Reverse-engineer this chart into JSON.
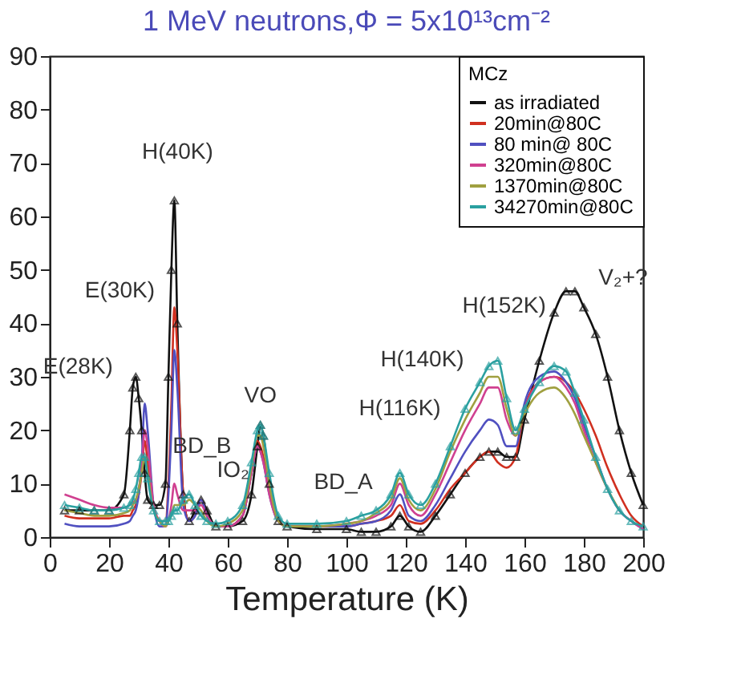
{
  "chart_data": {
    "type": "line",
    "title": "1 MeV neutrons,Φ = 5x10¹³cm⁻²",
    "xlabel": "Temperature (K)",
    "legend_title": "MCz",
    "legend": "top right",
    "grid": false,
    "x": [
      5,
      10,
      15,
      20,
      25,
      27,
      28,
      29,
      30,
      31,
      32,
      33,
      35,
      37,
      39,
      40,
      41,
      42,
      43,
      45,
      47,
      49,
      51,
      53,
      56,
      60,
      65,
      68,
      70,
      71,
      72,
      74,
      77,
      80,
      90,
      100,
      105,
      110,
      115,
      118,
      121,
      125,
      130,
      135,
      140,
      145,
      148,
      151,
      154,
      157,
      160,
      165,
      170,
      174,
      177,
      180,
      184,
      188,
      192,
      196,
      200
    ],
    "xlim": [
      0,
      200
    ],
    "xticks": [
      0,
      20,
      40,
      60,
      80,
      100,
      120,
      140,
      160,
      180,
      200
    ],
    "ylim": [
      0,
      90
    ],
    "yticks": [
      0,
      10,
      20,
      30,
      40,
      50,
      60,
      70,
      80,
      90
    ],
    "series": [
      {
        "name": "as irradiated",
        "color": "#111111",
        "marker": "triangle",
        "values": [
          5,
          5,
          5,
          5,
          8,
          20,
          28,
          30,
          26,
          20,
          12,
          7,
          6,
          6,
          10,
          30,
          50,
          63,
          40,
          8,
          3,
          5,
          7,
          5,
          2,
          2,
          3,
          8,
          17,
          21,
          19,
          10,
          3,
          2,
          1.5,
          1.5,
          1,
          1,
          2,
          4,
          2,
          1,
          4,
          8,
          12,
          15,
          16,
          16,
          15,
          15,
          22,
          33,
          42,
          46,
          46,
          43,
          38,
          30,
          20,
          12,
          6
        ]
      },
      {
        "name": "20min@80C",
        "color": "#d03020",
        "values": [
          4,
          3.5,
          3.5,
          3.5,
          4,
          4,
          5,
          6,
          8,
          12,
          18,
          14,
          6,
          3,
          3,
          10,
          25,
          43,
          35,
          8,
          3,
          4,
          7,
          4,
          2,
          2,
          4,
          12,
          18,
          17,
          15,
          9,
          3,
          2,
          2,
          2,
          2.5,
          3,
          4,
          6,
          3,
          2.5,
          5,
          9,
          12,
          15,
          16,
          14,
          13,
          15,
          24,
          29,
          30,
          29,
          27,
          24,
          19,
          13,
          8,
          4,
          2
        ]
      },
      {
        "name": "80 min@ 80C",
        "color": "#5050c0",
        "values": [
          2.5,
          2,
          2,
          2,
          2.5,
          3,
          4,
          5,
          8,
          14,
          25,
          20,
          6,
          2,
          2,
          8,
          20,
          35,
          28,
          6,
          3,
          4,
          7,
          4,
          2,
          2,
          4,
          12,
          17,
          16,
          14,
          8,
          3,
          2,
          2,
          2,
          2.5,
          3,
          5,
          8,
          4,
          3,
          6,
          11,
          16,
          20,
          22,
          21,
          17,
          17,
          25,
          30,
          31,
          29,
          26,
          21,
          15,
          9,
          5,
          3,
          1.5
        ]
      },
      {
        "name": "320min@80C",
        "color": "#d04090",
        "values": [
          8,
          7,
          6,
          5.5,
          5.5,
          6,
          6.5,
          7,
          9,
          13,
          20,
          17,
          6,
          3,
          2,
          3,
          6,
          10,
          8,
          5,
          5,
          5,
          6,
          4,
          2,
          2,
          4,
          12,
          17,
          16,
          14,
          8,
          3,
          2,
          2,
          2.5,
          3,
          4,
          6,
          10,
          6,
          4,
          8,
          14,
          20,
          25,
          28,
          28,
          22,
          19,
          24,
          29,
          30,
          28,
          25,
          20,
          14,
          9,
          5,
          3,
          1.5
        ]
      },
      {
        "name": "1370min@80C",
        "color": "#a0a040",
        "values": [
          5,
          4.5,
          4,
          4,
          4.5,
          5,
          6,
          7,
          9,
          12,
          15,
          12,
          5,
          3,
          2,
          3,
          4,
          6,
          6,
          6,
          7,
          6,
          5,
          3,
          2,
          2.5,
          5,
          13,
          19,
          19,
          17,
          10,
          3,
          2,
          2,
          2.5,
          3,
          4.5,
          7,
          11,
          7,
          5,
          9,
          16,
          22,
          27,
          30,
          30,
          24,
          19,
          23,
          27,
          28,
          26,
          23,
          19,
          14,
          9,
          5,
          null,
          null
        ]
      },
      {
        "name": "34270min@80C",
        "color": "#2aa0a0",
        "marker": "triangle",
        "values": [
          6,
          5.5,
          5,
          5,
          5.5,
          6,
          7,
          9,
          12,
          15,
          15,
          11,
          5,
          3,
          3,
          3,
          4,
          5,
          5,
          7,
          8,
          6,
          4,
          3,
          2.5,
          3,
          6,
          14,
          20,
          21,
          19,
          12,
          4,
          2.5,
          2.5,
          3,
          4,
          5,
          8,
          12,
          8,
          6,
          10,
          17,
          24,
          29,
          32,
          33,
          26,
          20,
          24,
          29,
          32,
          31,
          27,
          22,
          15,
          9,
          5,
          3,
          2
        ]
      }
    ],
    "annotations": [
      {
        "text": "H(40K)",
        "x": 42,
        "y": 63
      },
      {
        "text": "E(30K)",
        "x": 42,
        "y": 43
      },
      {
        "text": "E(28K)",
        "x": 29,
        "y": 30
      },
      {
        "text": "BD_B",
        "x": 47,
        "y": 8
      },
      {
        "text": "IO₂",
        "x": 51,
        "y": 7
      },
      {
        "text": "VO",
        "x": 71,
        "y": 21
      },
      {
        "text": "BD_A",
        "x": 100,
        "y": 3
      },
      {
        "text": "H(116K)",
        "x": 118,
        "y": 12
      },
      {
        "text": "H(140K)",
        "x": 145,
        "y": 29
      },
      {
        "text": "H(152K)",
        "x": 151,
        "y": 33
      },
      {
        "text": "V₂+?",
        "x": 177,
        "y": 46
      }
    ]
  }
}
